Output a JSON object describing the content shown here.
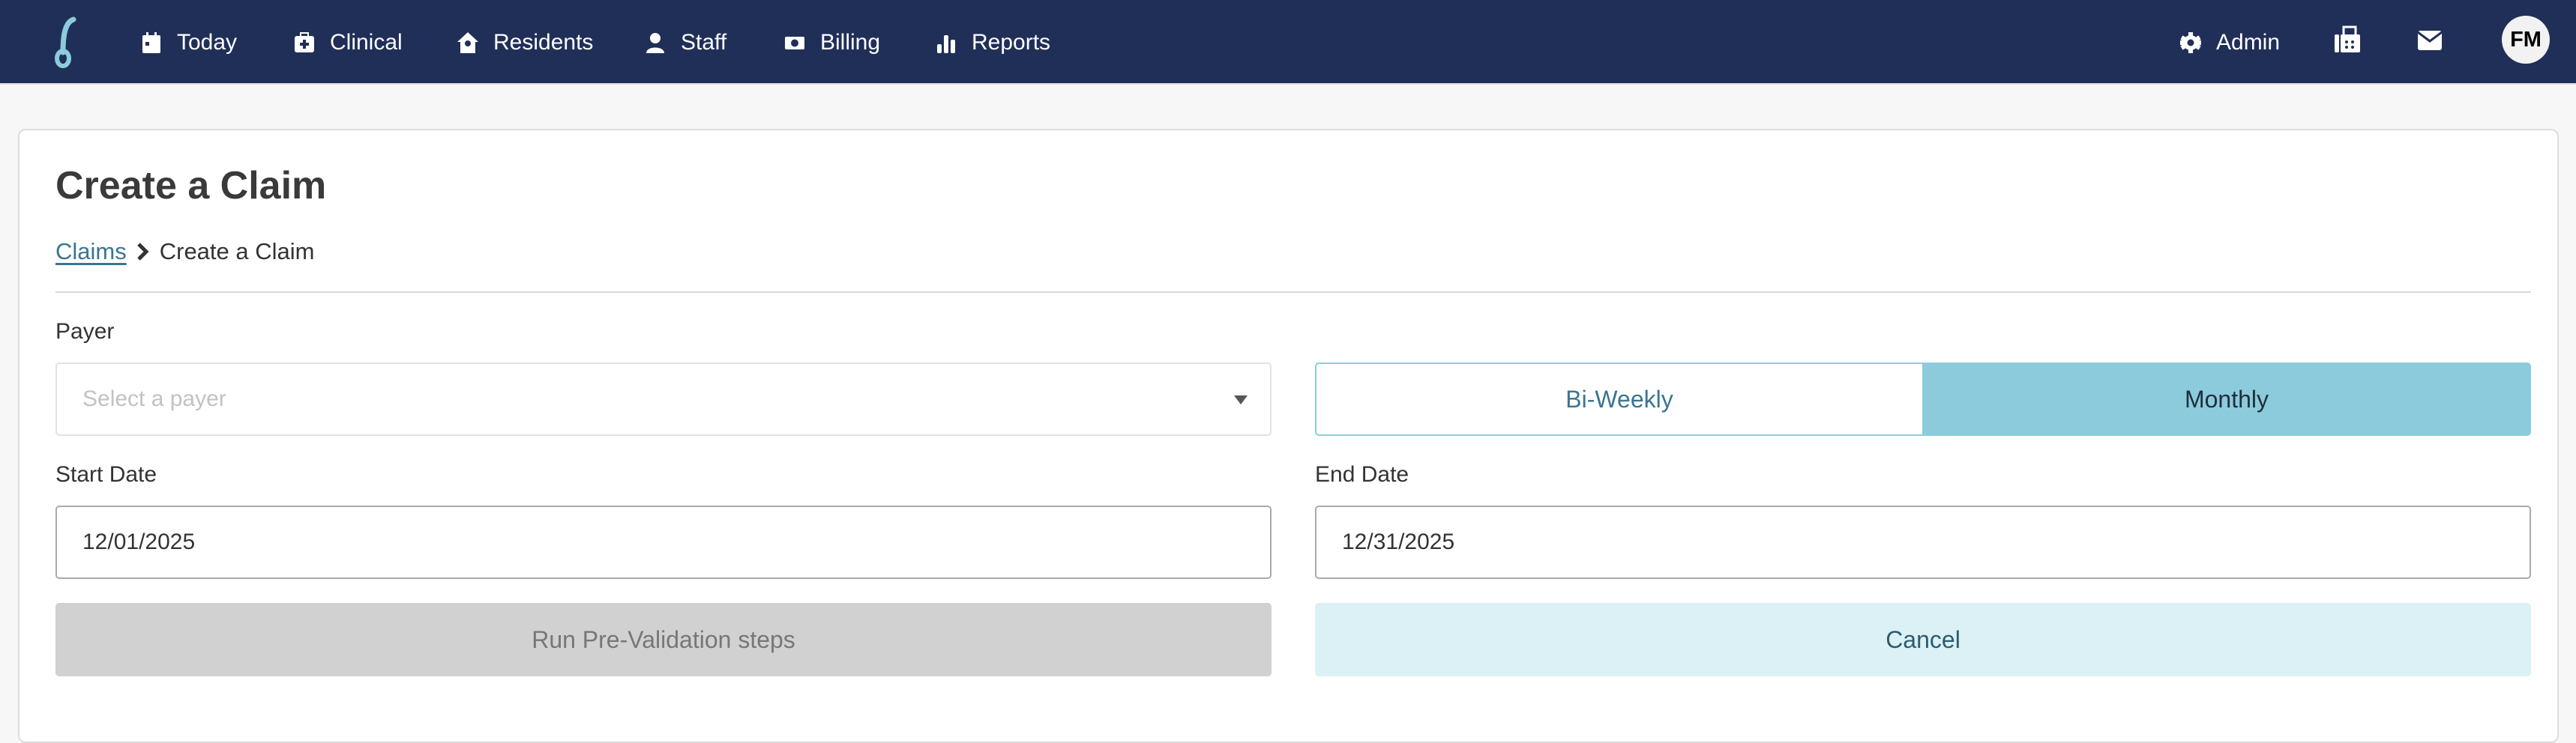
{
  "nav": {
    "items": [
      {
        "label": "Today",
        "icon": "calendar-icon"
      },
      {
        "label": "Clinical",
        "icon": "medical-kit-icon"
      },
      {
        "label": "Residents",
        "icon": "house-user-icon"
      },
      {
        "label": "Staff",
        "icon": "nurse-icon"
      },
      {
        "label": "Billing",
        "icon": "money-exchange-icon"
      },
      {
        "label": "Reports",
        "icon": "bar-chart-icon"
      }
    ],
    "admin": "Admin",
    "avatar": "FM"
  },
  "page": {
    "title": "Create a Claim",
    "breadcrumb": {
      "parent": "Claims",
      "current": "Create a Claim"
    }
  },
  "form": {
    "payer_label": "Payer",
    "payer_placeholder": "Select a payer",
    "frequency": {
      "options": [
        "Bi-Weekly",
        "Monthly"
      ],
      "selected": "Monthly"
    },
    "start_label": "Start Date",
    "start_value": "12/01/2025",
    "end_label": "End Date",
    "end_value": "12/31/2025",
    "run_label": "Run Pre-Validation steps",
    "cancel_label": "Cancel"
  },
  "colors": {
    "header": "#202f58",
    "accent": "#8ccbdc",
    "link": "#3a7590"
  }
}
